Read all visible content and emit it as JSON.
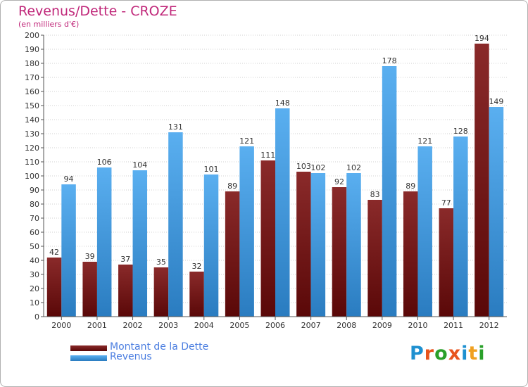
{
  "chart_data": {
    "type": "bar",
    "title": "Revenus/Dette - CROZE",
    "subtitle": "(en milliers d'€)",
    "categories": [
      "2000",
      "2001",
      "2002",
      "2003",
      "2004",
      "2005",
      "2006",
      "2007",
      "2008",
      "2009",
      "2010",
      "2011",
      "2012"
    ],
    "series": [
      {
        "name": "Montant de la Dette",
        "color": "#7a1a1a",
        "values": [
          42,
          39,
          37,
          35,
          32,
          89,
          111,
          103,
          92,
          83,
          89,
          77,
          194
        ]
      },
      {
        "name": "Revenus",
        "color": "#4da6e8",
        "values": [
          94,
          106,
          104,
          131,
          101,
          121,
          148,
          102,
          102,
          178,
          121,
          128,
          149
        ]
      }
    ],
    "ylim": [
      0,
      200
    ],
    "ytick_step": 10,
    "grid": true,
    "legend": "bottom-left",
    "xlabel": "",
    "ylabel": ""
  },
  "logo": {
    "text": "Proxiti",
    "colors": [
      "#1e90d0",
      "#e8541c",
      "#2aa02a",
      "#e8541c",
      "#1e90d0",
      "#f0a020",
      "#2aa02a"
    ]
  }
}
